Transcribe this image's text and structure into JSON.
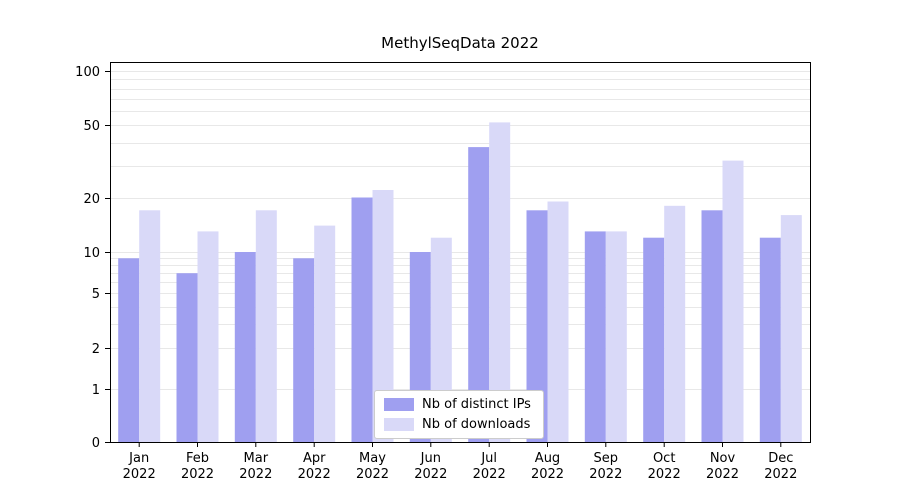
{
  "page": {
    "title": "MethylSeqData 2022"
  },
  "chart_data": {
    "type": "bar",
    "title": "MethylSeqData 2022",
    "yscale": "symlog",
    "ylim": [
      0,
      110
    ],
    "y_ticks": [
      0,
      1,
      2,
      5,
      10,
      20,
      50,
      100
    ],
    "grid": "horizontal, log minor gridlines, light gray",
    "legend_position": "lower center",
    "x_year": "2022",
    "categories": [
      "Jan",
      "Feb",
      "Mar",
      "Apr",
      "May",
      "Jun",
      "Jul",
      "Aug",
      "Sep",
      "Oct",
      "Nov",
      "Dec"
    ],
    "series": [
      {
        "name": "Nb of distinct IPs",
        "color": "#9f9ff0",
        "values": [
          9,
          7,
          10,
          9,
          20,
          10,
          38,
          17,
          13,
          12,
          17,
          12
        ]
      },
      {
        "name": "Nb of downloads",
        "color": "#d9d9f8",
        "values": [
          17,
          13,
          17,
          14,
          22,
          12,
          52,
          19,
          13,
          18,
          32,
          16
        ]
      }
    ]
  }
}
